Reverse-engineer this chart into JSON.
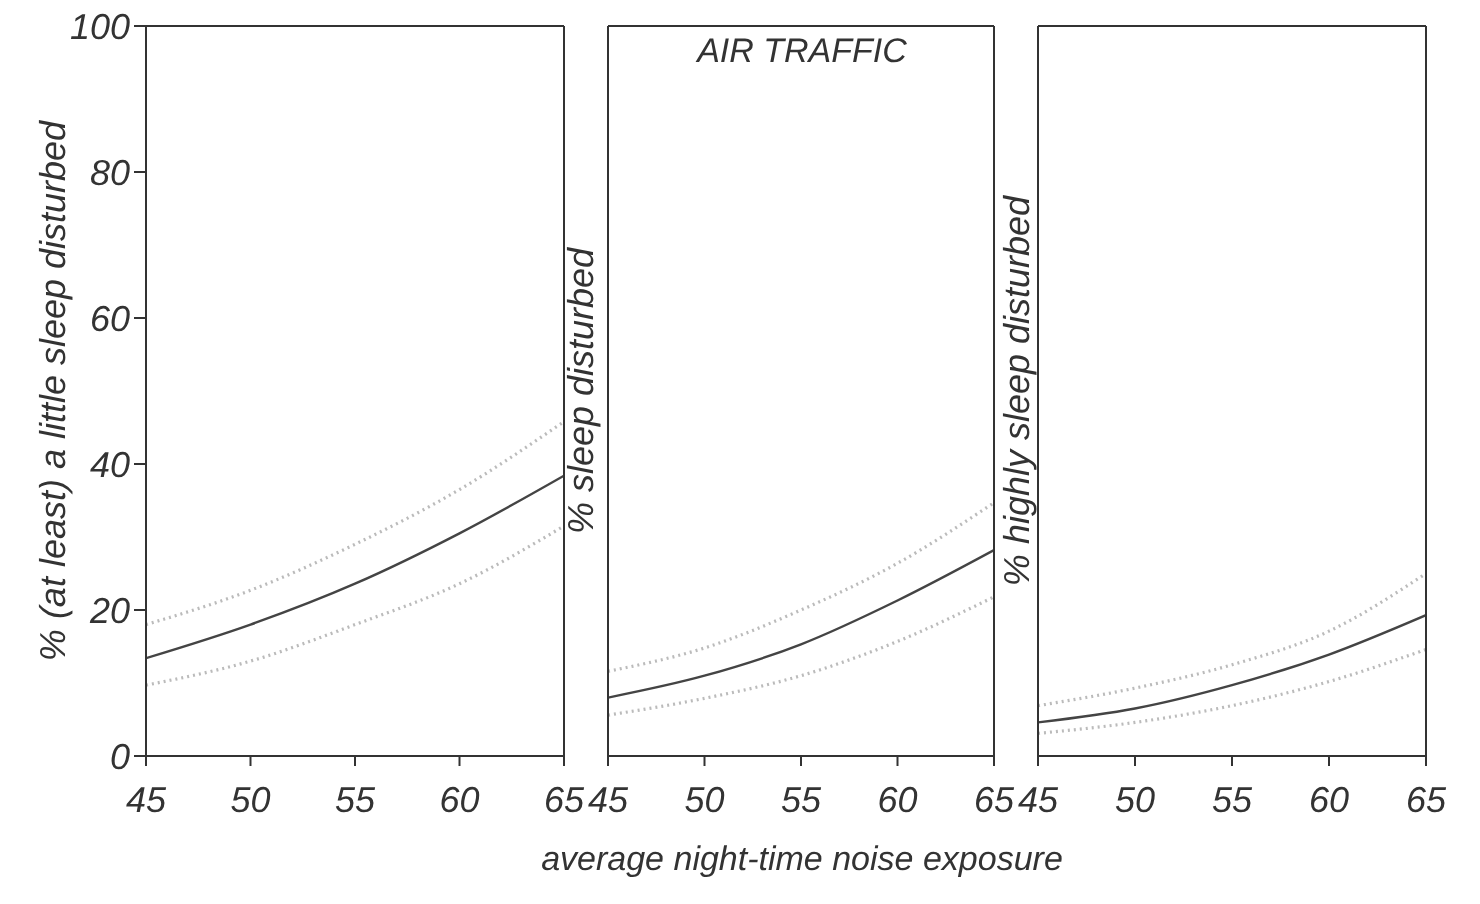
{
  "chart_data": [
    {
      "type": "line",
      "ylabel": "% (at least) a little sleep disturbed",
      "x": [
        45,
        50,
        55,
        60,
        65
      ],
      "xlim": [
        45,
        65
      ],
      "xticks": [
        45,
        50,
        55,
        60,
        65
      ],
      "ylim": [
        0,
        100
      ],
      "yticks": [
        0,
        20,
        40,
        60,
        80,
        100
      ],
      "grid": false,
      "legend": false,
      "marker": "none",
      "series": [
        {
          "color": "#bbbbbb",
          "line_style": "dotted",
          "values": [
            18,
            22.7,
            29,
            36.5,
            45.8
          ]
        },
        {
          "color": "#444444",
          "line_style": "solid",
          "values": [
            13.4,
            18,
            23.6,
            30.5,
            38.4
          ]
        },
        {
          "color": "#bbbbbb",
          "line_style": "dotted",
          "values": [
            9.7,
            13,
            18,
            23.6,
            31.5
          ]
        }
      ]
    },
    {
      "type": "line",
      "title": "AIR TRAFFIC",
      "xlabel": "average night-time noise exposure",
      "ylabel": "% sleep disturbed",
      "x": [
        45,
        50,
        55,
        60,
        65
      ],
      "xlim": [
        45,
        65
      ],
      "xticks": [
        45,
        50,
        55,
        60,
        65
      ],
      "ylim": [
        0,
        100
      ],
      "yticks": [
        0,
        20,
        40,
        60,
        80,
        100
      ],
      "tick_labels": "x",
      "grid": false,
      "legend": false,
      "marker": "none",
      "series": [
        {
          "color": "#bbbbbb",
          "line_style": "dotted",
          "values": [
            11.6,
            14.8,
            20,
            26.4,
            34.7
          ]
        },
        {
          "color": "#444444",
          "line_style": "solid",
          "values": [
            8,
            11,
            15.3,
            21.3,
            28.2
          ]
        },
        {
          "color": "#bbbbbb",
          "line_style": "dotted",
          "values": [
            5.6,
            7.9,
            11,
            15.7,
            21.8
          ]
        }
      ]
    },
    {
      "type": "line",
      "ylabel": "% highly sleep disturbed",
      "x": [
        45,
        50,
        55,
        60,
        65
      ],
      "xlim": [
        45,
        65
      ],
      "xticks": [
        45,
        50,
        55,
        60,
        65
      ],
      "ylim": [
        0,
        100
      ],
      "yticks": [
        0,
        20,
        40,
        60,
        80,
        100
      ],
      "tick_labels": "x",
      "grid": false,
      "legend": false,
      "marker": "none",
      "series": [
        {
          "color": "#bbbbbb",
          "line_style": "dotted",
          "values": [
            6.9,
            9.3,
            12.5,
            17.1,
            25
          ]
        },
        {
          "color": "#444444",
          "line_style": "solid",
          "values": [
            4.6,
            6.5,
            9.7,
            13.9,
            19.3
          ]
        },
        {
          "color": "#bbbbbb",
          "line_style": "dotted",
          "values": [
            3.1,
            4.6,
            6.9,
            10.2,
            14.6
          ]
        }
      ]
    }
  ]
}
